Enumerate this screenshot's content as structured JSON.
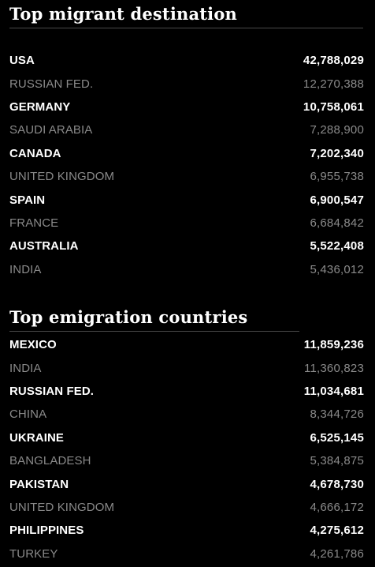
{
  "destination": {
    "title": "Top migrant destination",
    "rows": [
      {
        "country": "USA",
        "value": "42,788,029"
      },
      {
        "country": "RUSSIAN FED.",
        "value": "12,270,388"
      },
      {
        "country": "GERMANY",
        "value": "10,758,061"
      },
      {
        "country": "SAUDI ARABIA",
        "value": "7,288,900"
      },
      {
        "country": "CANADA",
        "value": "7,202,340"
      },
      {
        "country": "UNITED KINGDOM",
        "value": "6,955,738"
      },
      {
        "country": "SPAIN",
        "value": "6,900,547"
      },
      {
        "country": "FRANCE",
        "value": "6,684,842"
      },
      {
        "country": "AUSTRALIA",
        "value": "5,522,408"
      },
      {
        "country": "INDIA",
        "value": "5,436,012"
      }
    ]
  },
  "emigration": {
    "title": "Top emigration countries",
    "rows": [
      {
        "country": "MEXICO",
        "value": "11,859,236"
      },
      {
        "country": "INDIA",
        "value": "11,360,823"
      },
      {
        "country": "RUSSIAN FED.",
        "value": "11,034,681"
      },
      {
        "country": "CHINA",
        "value": "8,344,726"
      },
      {
        "country": "UKRAINE",
        "value": "6,525,145"
      },
      {
        "country": "BANGLADESH",
        "value": "5,384,875"
      },
      {
        "country": "PAKISTAN",
        "value": "4,678,730"
      },
      {
        "country": "UNITED KINGDOM",
        "value": "4,666,172"
      },
      {
        "country": "PHILIPPINES",
        "value": "4,275,612"
      },
      {
        "country": "TURKEY",
        "value": "4,261,786"
      }
    ]
  },
  "colors": {
    "background": "#000000",
    "primary_text": "#ffffff",
    "secondary_text": "#8a8a8a",
    "rule": "#4a4a4a"
  }
}
